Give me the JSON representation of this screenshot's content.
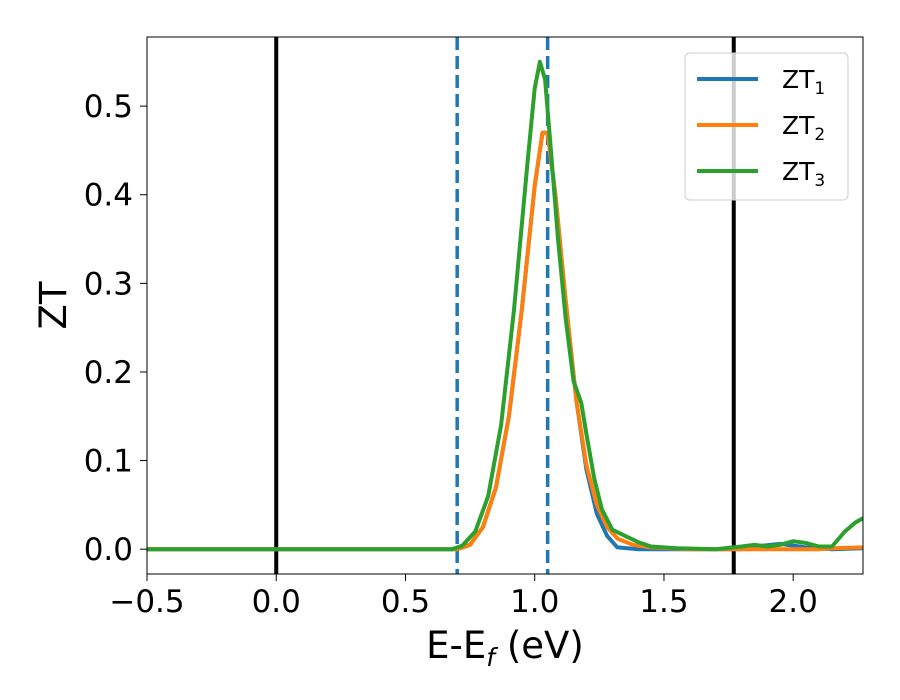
{
  "chart_data": {
    "type": "line",
    "title": "",
    "xlabel": "E-E",
    "xlabel_sub": "f",
    "xlabel_unit": " (eV)",
    "ylabel": "ZT",
    "xlim": [
      -0.5,
      2.27
    ],
    "ylim": [
      -0.028,
      0.578
    ],
    "xticks": [
      -0.5,
      0.0,
      0.5,
      1.0,
      1.5,
      2.0
    ],
    "xtick_labels": [
      "−0.5",
      "0.0",
      "0.5",
      "1.0",
      "1.5",
      "2.0"
    ],
    "yticks": [
      0.0,
      0.1,
      0.2,
      0.3,
      0.4,
      0.5
    ],
    "ytick_labels": [
      "0.0",
      "0.1",
      "0.2",
      "0.3",
      "0.4",
      "0.5"
    ],
    "grid": false,
    "legend_position": "top-right",
    "vlines": [
      {
        "x": 0.0,
        "style": "solid",
        "color": "#000000"
      },
      {
        "x": 1.77,
        "style": "solid",
        "color": "#000000"
      },
      {
        "x": 0.7,
        "style": "dashed",
        "color": "#1f77b4"
      },
      {
        "x": 1.05,
        "style": "dashed",
        "color": "#1f77b4"
      }
    ],
    "series": [
      {
        "name": "ZT",
        "name_sub": "1",
        "color": "#1f77b4",
        "points": [
          [
            -0.5,
            0
          ],
          [
            0.6,
            0
          ],
          [
            0.7,
            0.0
          ],
          [
            0.75,
            0.005
          ],
          [
            0.8,
            0.025
          ],
          [
            0.85,
            0.07
          ],
          [
            0.9,
            0.15
          ],
          [
            0.95,
            0.27
          ],
          [
            1.0,
            0.41
          ],
          [
            1.03,
            0.47
          ],
          [
            1.05,
            0.47
          ],
          [
            1.08,
            0.4
          ],
          [
            1.12,
            0.28
          ],
          [
            1.16,
            0.17
          ],
          [
            1.2,
            0.09
          ],
          [
            1.24,
            0.04
          ],
          [
            1.28,
            0.015
          ],
          [
            1.32,
            0.002
          ],
          [
            1.4,
            0
          ],
          [
            1.8,
            0
          ],
          [
            1.85,
            0.003
          ],
          [
            1.95,
            0.006
          ],
          [
            2.05,
            0.002
          ],
          [
            2.15,
            0.0
          ],
          [
            2.27,
            0.001
          ]
        ]
      },
      {
        "name": "ZT",
        "name_sub": "2",
        "color": "#ff7f0e",
        "points": [
          [
            -0.5,
            0
          ],
          [
            0.6,
            0
          ],
          [
            0.7,
            0.0
          ],
          [
            0.75,
            0.005
          ],
          [
            0.8,
            0.025
          ],
          [
            0.85,
            0.07
          ],
          [
            0.9,
            0.15
          ],
          [
            0.95,
            0.27
          ],
          [
            1.0,
            0.41
          ],
          [
            1.03,
            0.47
          ],
          [
            1.05,
            0.47
          ],
          [
            1.08,
            0.4
          ],
          [
            1.12,
            0.28
          ],
          [
            1.16,
            0.17
          ],
          [
            1.2,
            0.095
          ],
          [
            1.24,
            0.05
          ],
          [
            1.28,
            0.025
          ],
          [
            1.32,
            0.012
          ],
          [
            1.38,
            0.005
          ],
          [
            1.45,
            0.002
          ],
          [
            1.6,
            0
          ],
          [
            2.1,
            0
          ],
          [
            2.15,
            0.001
          ],
          [
            2.27,
            0.002
          ]
        ]
      },
      {
        "name": "ZT",
        "name_sub": "3",
        "color": "#2ca02c",
        "points": [
          [
            -0.5,
            0
          ],
          [
            0.6,
            0
          ],
          [
            0.68,
            0.0
          ],
          [
            0.72,
            0.004
          ],
          [
            0.77,
            0.02
          ],
          [
            0.82,
            0.06
          ],
          [
            0.87,
            0.14
          ],
          [
            0.92,
            0.27
          ],
          [
            0.97,
            0.43
          ],
          [
            1.0,
            0.52
          ],
          [
            1.02,
            0.55
          ],
          [
            1.04,
            0.53
          ],
          [
            1.06,
            0.46
          ],
          [
            1.09,
            0.35
          ],
          [
            1.12,
            0.26
          ],
          [
            1.15,
            0.19
          ],
          [
            1.18,
            0.165
          ],
          [
            1.2,
            0.13
          ],
          [
            1.23,
            0.08
          ],
          [
            1.26,
            0.045
          ],
          [
            1.3,
            0.022
          ],
          [
            1.35,
            0.015
          ],
          [
            1.4,
            0.008
          ],
          [
            1.45,
            0.003
          ],
          [
            1.55,
            0.001
          ],
          [
            1.7,
            0
          ],
          [
            1.8,
            0.003
          ],
          [
            1.85,
            0.005
          ],
          [
            1.9,
            0.003
          ],
          [
            1.95,
            0.005
          ],
          [
            2.0,
            0.009
          ],
          [
            2.05,
            0.007
          ],
          [
            2.1,
            0.003
          ],
          [
            2.15,
            0.003
          ],
          [
            2.2,
            0.02
          ],
          [
            2.24,
            0.03
          ],
          [
            2.27,
            0.035
          ]
        ]
      }
    ]
  }
}
